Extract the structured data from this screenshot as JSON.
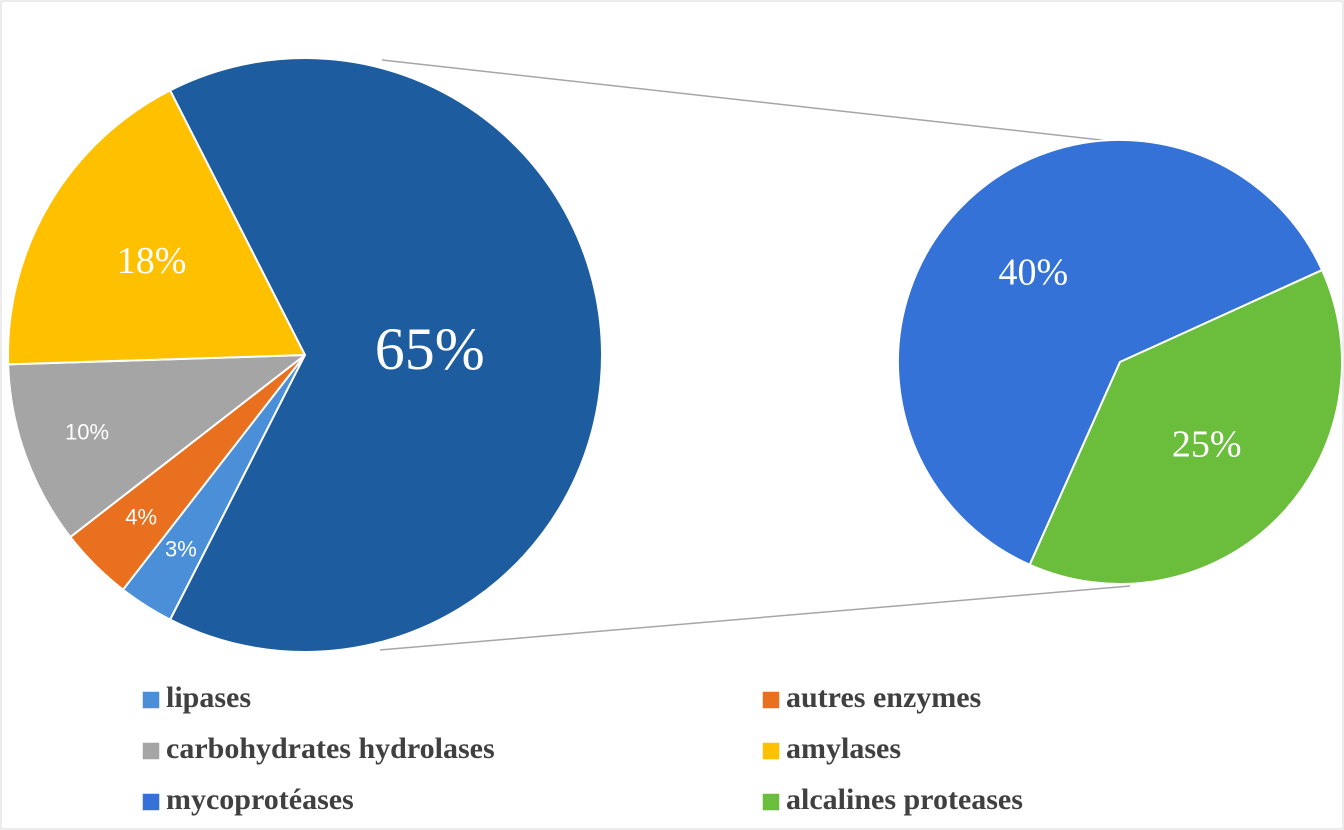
{
  "chart_data": {
    "type": "pie_of_pie",
    "primary": {
      "categories": [
        "lipases",
        "autres enzymes",
        "carbohydrates hydrolases",
        "amylases",
        null
      ],
      "values": [
        3,
        4,
        10,
        18,
        65
      ],
      "value_labels": [
        "3%",
        "4%",
        "10%",
        "18%",
        "65%"
      ],
      "colors": [
        "#4a8fd8",
        "#e8701e",
        "#a5a5a5",
        "#ffc000",
        "#1d5c9e"
      ]
    },
    "secondary": {
      "categories": [
        "mycoprotéases",
        "alcalines proteases"
      ],
      "values": [
        40,
        25
      ],
      "value_labels": [
        "40%",
        "25%"
      ],
      "colors": [
        "#3572d8",
        "#6bbd3c"
      ]
    }
  }
}
